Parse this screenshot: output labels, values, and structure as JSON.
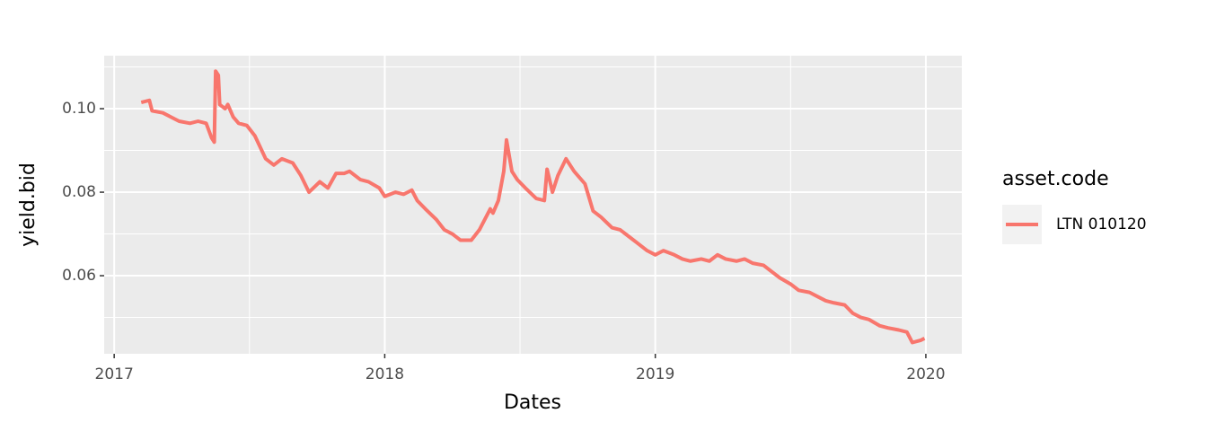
{
  "chart_data": {
    "type": "line",
    "x_label": "Dates",
    "y_label": "yield.bid",
    "legend_title": "asset.code",
    "legend_position": "right",
    "x": [
      2017.1,
      2017.13,
      2017.14,
      2017.18,
      2017.21,
      2017.24,
      2017.28,
      2017.31,
      2017.34,
      2017.36,
      2017.37,
      2017.375,
      2017.385,
      2017.39,
      2017.41,
      2017.42,
      2017.44,
      2017.46,
      2017.49,
      2017.52,
      2017.56,
      2017.59,
      2017.62,
      2017.66,
      2017.69,
      2017.72,
      2017.76,
      2017.79,
      2017.82,
      2017.85,
      2017.87,
      2017.91,
      2017.94,
      2017.98,
      2018.0,
      2018.04,
      2018.07,
      2018.1,
      2018.12,
      2018.15,
      2018.19,
      2018.22,
      2018.25,
      2018.28,
      2018.32,
      2018.35,
      2018.39,
      2018.4,
      2018.42,
      2018.44,
      2018.45,
      2018.47,
      2018.49,
      2018.52,
      2018.56,
      2018.59,
      2018.6,
      2018.62,
      2018.64,
      2018.67,
      2018.7,
      2018.74,
      2018.77,
      2018.8,
      2018.84,
      2018.87,
      2018.9,
      2018.93,
      2018.97,
      2019.0,
      2019.03,
      2019.07,
      2019.1,
      2019.13,
      2019.17,
      2019.2,
      2019.23,
      2019.26,
      2019.3,
      2019.33,
      2019.36,
      2019.4,
      2019.43,
      2019.46,
      2019.5,
      2019.53,
      2019.57,
      2019.6,
      2019.63,
      2019.66,
      2019.7,
      2019.73,
      2019.76,
      2019.79,
      2019.83,
      2019.86,
      2019.9,
      2019.93,
      2019.95,
      2019.98,
      2019.995
    ],
    "series": [
      {
        "name": "LTN 010120",
        "color": "#f8766d",
        "values": [
          0.1015,
          0.102,
          0.0995,
          0.099,
          0.098,
          0.097,
          0.0965,
          0.097,
          0.0965,
          0.093,
          0.092,
          0.109,
          0.108,
          0.101,
          0.1,
          0.101,
          0.098,
          0.0965,
          0.096,
          0.0935,
          0.088,
          0.0865,
          0.088,
          0.087,
          0.084,
          0.08,
          0.0825,
          0.081,
          0.0845,
          0.0845,
          0.085,
          0.083,
          0.0825,
          0.081,
          0.079,
          0.08,
          0.0795,
          0.0805,
          0.078,
          0.076,
          0.0735,
          0.071,
          0.07,
          0.0685,
          0.0685,
          0.071,
          0.076,
          0.075,
          0.078,
          0.085,
          0.0925,
          0.085,
          0.083,
          0.081,
          0.0785,
          0.078,
          0.0855,
          0.08,
          0.084,
          0.088,
          0.085,
          0.082,
          0.0755,
          0.074,
          0.0715,
          0.071,
          0.0695,
          0.068,
          0.066,
          0.065,
          0.066,
          0.065,
          0.064,
          0.0635,
          0.064,
          0.0635,
          0.065,
          0.064,
          0.0635,
          0.064,
          0.063,
          0.0625,
          0.061,
          0.0595,
          0.058,
          0.0565,
          0.056,
          0.055,
          0.054,
          0.0535,
          0.053,
          0.051,
          0.05,
          0.0495,
          0.048,
          0.0475,
          0.047,
          0.0465,
          0.044,
          0.0445,
          0.045
        ]
      }
    ],
    "xlim": [
      2016.963,
      2020.133
    ],
    "xticks": [
      2017,
      2018,
      2019,
      2020
    ],
    "xminorticks": [
      2017.5,
      2018.5,
      2019.5
    ],
    "ylim": [
      0.0413,
      0.1127
    ],
    "yticks": [
      0.06,
      0.08,
      {
        "value": 0.1,
        "label": "0.10"
      }
    ],
    "yminorticks": [
      0.05,
      0.07,
      0.09,
      0.11
    ],
    "grid": true
  }
}
